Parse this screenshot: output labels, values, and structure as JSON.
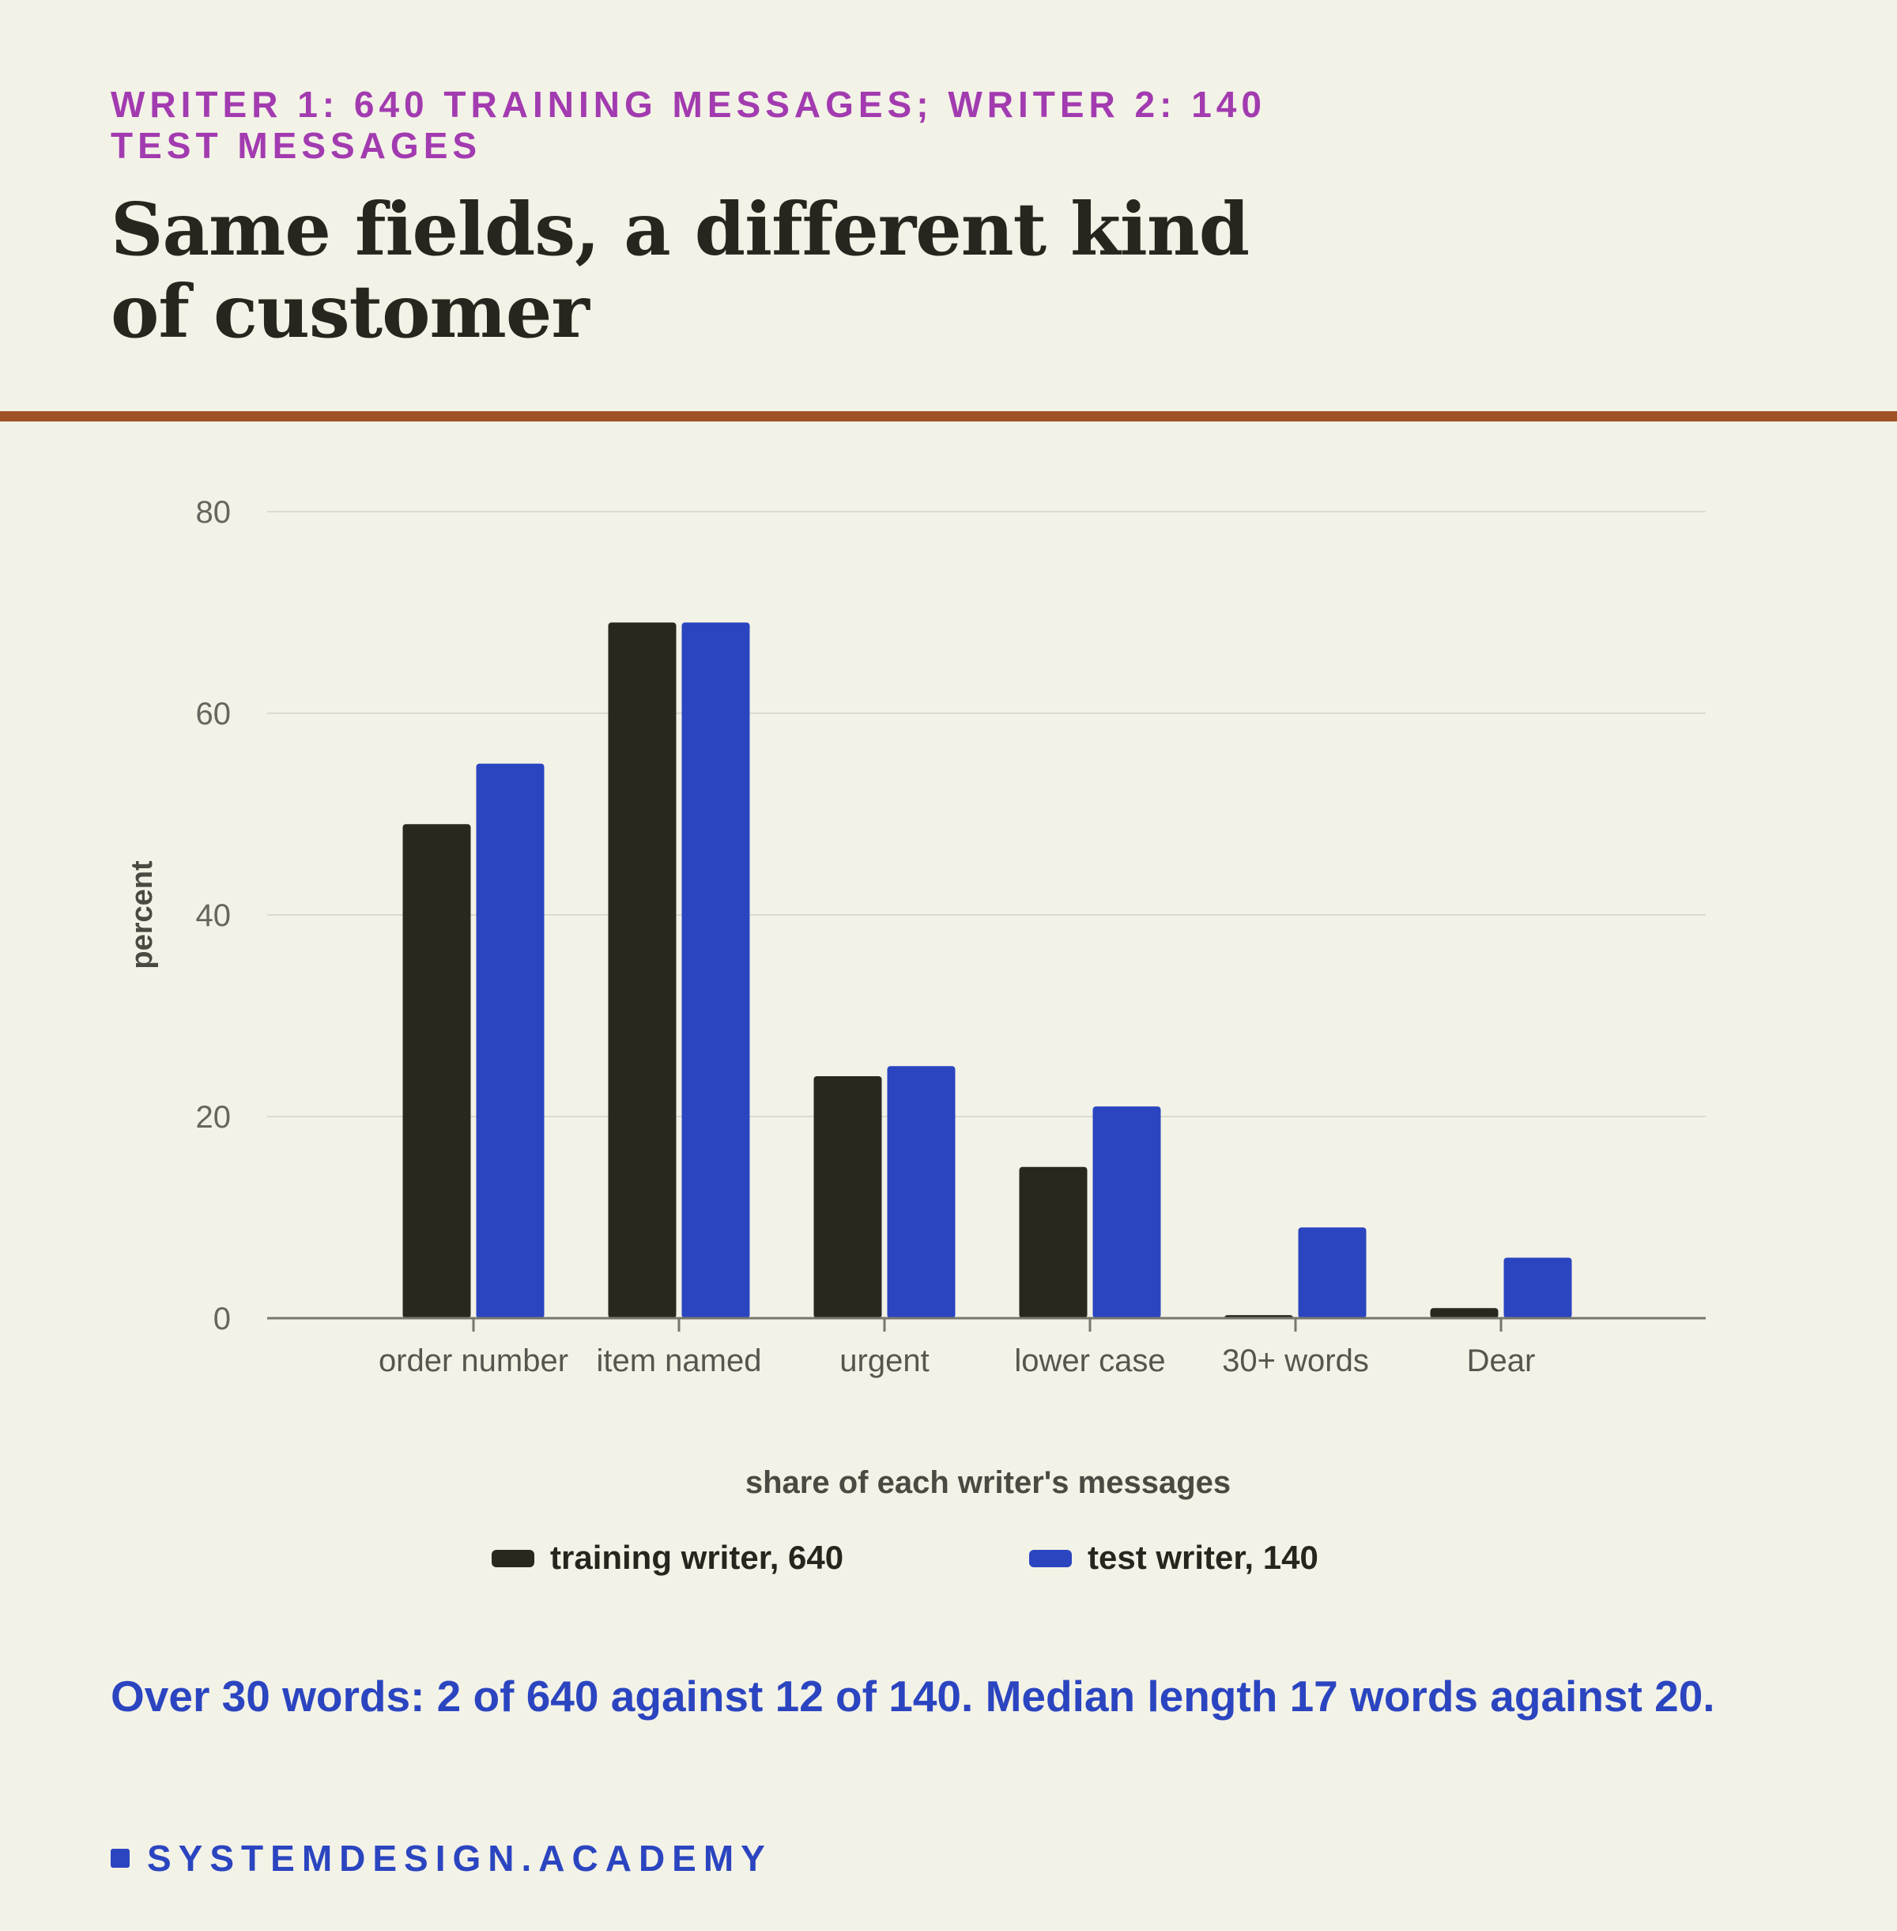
{
  "header": {
    "eyebrow": "Writer 1: 640 training messages; Writer 2: 140 test messages",
    "title": "Same fields, a different kind of customer"
  },
  "colors": {
    "accent": "#a23bb0",
    "rule": "#9f5226",
    "training": "#28281f",
    "test": "#2b45c0"
  },
  "chart_data": {
    "type": "bar",
    "categories": [
      "order number",
      "item named",
      "urgent",
      "lower case",
      "30+ words",
      "Dear"
    ],
    "series": [
      {
        "name": "training writer, 640",
        "values": [
          49,
          69,
          24,
          15,
          0.3,
          1
        ]
      },
      {
        "name": "test writer, 140",
        "values": [
          55,
          69,
          25,
          21,
          9,
          6
        ]
      }
    ],
    "xlabel": "share of each writer's messages",
    "ylabel": "percent",
    "ylim": [
      0,
      80
    ],
    "yticks": [
      0,
      20,
      40,
      60,
      80
    ],
    "grid": true,
    "legend": "bottom"
  },
  "footer": {
    "note": "Over 30 words: 2 of 640 against 12 of 140. Median length 17 words against 20.",
    "brand": "SYSTEMDESIGN.ACADEMY"
  }
}
